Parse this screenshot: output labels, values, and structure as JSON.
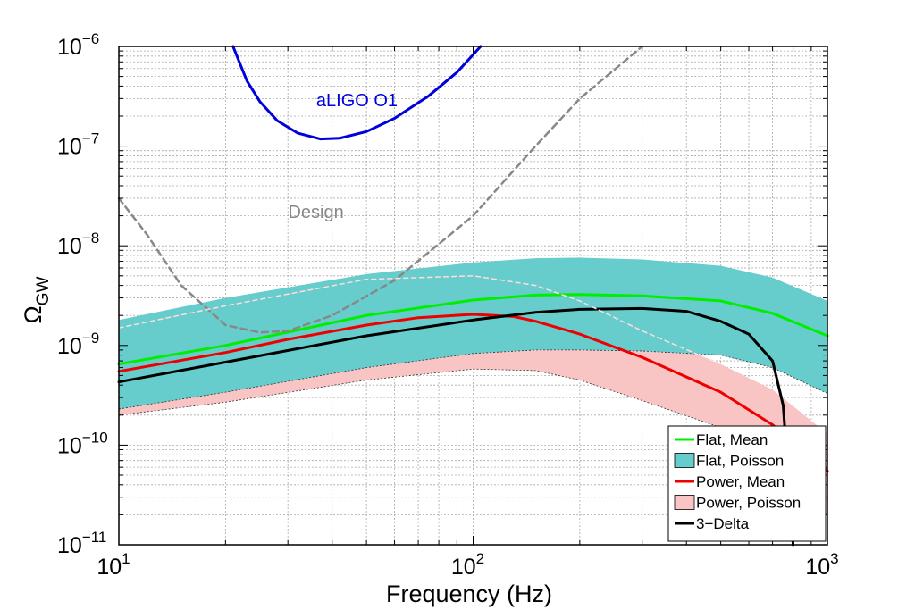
{
  "chart_data": {
    "type": "line",
    "xlabel": "Frequency (Hz)",
    "ylabel": {
      "base": "Ω",
      "sub": "GW"
    },
    "xscale": "log",
    "yscale": "log",
    "xlim": [
      10,
      1000
    ],
    "ylim": [
      1e-11,
      1e-06
    ],
    "grid": true,
    "x_ticks": [
      {
        "base": "10",
        "exp": "1"
      },
      {
        "base": "10",
        "exp": "2"
      },
      {
        "base": "10",
        "exp": "3"
      }
    ],
    "y_ticks": [
      {
        "base": "10",
        "exp": "−6"
      },
      {
        "base": "10",
        "exp": "−7"
      },
      {
        "base": "10",
        "exp": "−8"
      },
      {
        "base": "10",
        "exp": "−9"
      },
      {
        "base": "10",
        "exp": "−10"
      },
      {
        "base": "10",
        "exp": "−11"
      }
    ],
    "legend_position": "bottom-right",
    "bands": [
      {
        "name": "Power, Poisson",
        "color": "#f9c4c4",
        "x": [
          10,
          20,
          50,
          100,
          150,
          200,
          300,
          500,
          700,
          1000
        ],
        "lower": [
          2e-10,
          2.7e-10,
          4.5e-10,
          5.8e-10,
          5.6e-10,
          4.5e-10,
          2.8e-10,
          1.5e-10,
          7e-11,
          2e-11
        ],
        "upper": [
          1.5e-09,
          2.5e-09,
          4.7e-09,
          5e-09,
          4e-09,
          2.8e-09,
          1.4e-09,
          6.5e-10,
          3.6e-10,
          1.3e-10
        ]
      },
      {
        "name": "Flat, Poisson",
        "color": "#66cccc",
        "x": [
          10,
          20,
          50,
          100,
          150,
          200,
          300,
          500,
          700,
          1000
        ],
        "lower": [
          2.3e-10,
          3.4e-10,
          6e-10,
          8.3e-10,
          9e-10,
          9e-10,
          8.8e-10,
          8e-10,
          6e-10,
          3.3e-10
        ],
        "upper": [
          1.8e-09,
          3e-09,
          5.2e-09,
          6.8e-09,
          7.5e-09,
          7.6e-09,
          7.3e-09,
          6.3e-09,
          4.8e-09,
          2.8e-09
        ]
      }
    ],
    "series": [
      {
        "name": "Flat, Mean",
        "color": "#00ee00",
        "width": 3,
        "x": [
          10,
          20,
          50,
          100,
          150,
          200,
          300,
          500,
          700,
          1000
        ],
        "y": [
          6.5e-10,
          1e-09,
          2e-09,
          2.85e-09,
          3.2e-09,
          3.25e-09,
          3.15e-09,
          2.8e-09,
          2.1e-09,
          1.25e-09
        ]
      },
      {
        "name": "Power, Mean",
        "color": "#ee0000",
        "width": 3,
        "x": [
          10,
          20,
          30,
          50,
          70,
          100,
          130,
          150,
          200,
          300,
          500,
          700,
          1000
        ],
        "y": [
          5.5e-10,
          8.5e-10,
          1.15e-09,
          1.6e-09,
          1.9e-09,
          2.05e-09,
          1.95e-09,
          1.75e-09,
          1.3e-09,
          7.6e-10,
          3.4e-10,
          1.6e-10,
          5.5e-11
        ]
      },
      {
        "name": "3−Delta",
        "color": "#000000",
        "width": 3,
        "x": [
          10,
          20,
          50,
          100,
          150,
          200,
          300,
          400,
          500,
          600,
          700,
          750,
          800
        ],
        "y": [
          4.3e-10,
          6.8e-10,
          1.25e-09,
          1.8e-09,
          2.15e-09,
          2.3e-09,
          2.35e-09,
          2.2e-09,
          1.75e-09,
          1.3e-09,
          7e-10,
          2.5e-10,
          1e-11
        ]
      },
      {
        "name": "Design (solid dashed)",
        "legend": false,
        "color": "#888888",
        "width": 2.5,
        "dash": "7,5",
        "x": [
          10,
          12,
          15,
          20,
          25,
          30,
          40,
          60,
          100,
          150,
          200,
          300
        ],
        "y": [
          3e-08,
          1.3e-08,
          4e-09,
          1.6e-09,
          1.35e-09,
          1.4e-09,
          2e-09,
          4.5e-09,
          2e-08,
          1e-07,
          3e-07,
          1e-06
        ]
      },
      {
        "name": "Design (thin)",
        "legend": false,
        "color": "#ffdddd",
        "width": 1.5,
        "dash": "5,4",
        "x": [
          10,
          20,
          50,
          100,
          150,
          200,
          300,
          500
        ],
        "y": [
          1.5e-09,
          2.5e-09,
          4.6e-09,
          5e-09,
          4e-09,
          2.8e-09,
          1.4e-09,
          6.5e-10
        ]
      },
      {
        "name": "aLIGO O1",
        "legend": false,
        "color": "#0000dd",
        "width": 3,
        "x": [
          21,
          23,
          25,
          28,
          32,
          37,
          42,
          50,
          60,
          75,
          90,
          105
        ],
        "y": [
          1e-06,
          4.5e-07,
          2.8e-07,
          1.8e-07,
          1.35e-07,
          1.18e-07,
          1.2e-07,
          1.4e-07,
          1.9e-07,
          3.2e-07,
          5.5e-07,
          1e-06
        ]
      }
    ],
    "annotations": [
      {
        "text": "aLIGO O1",
        "x": 47,
        "y": 2.5e-07,
        "color": "#0000dd"
      },
      {
        "text": "Design",
        "x": 36,
        "y": 1.9e-08,
        "color": "#888888"
      }
    ],
    "legend": [
      {
        "label": "Flat, Mean",
        "kind": "line",
        "color": "#00ee00"
      },
      {
        "label": "Flat, Poisson",
        "kind": "patch",
        "color": "#66cccc"
      },
      {
        "label": "Power, Mean",
        "kind": "line",
        "color": "#ee0000"
      },
      {
        "label": "Power, Poisson",
        "kind": "patch",
        "color": "#f9c4c4"
      },
      {
        "label": "3−Delta",
        "kind": "line",
        "color": "#000000"
      }
    ]
  }
}
